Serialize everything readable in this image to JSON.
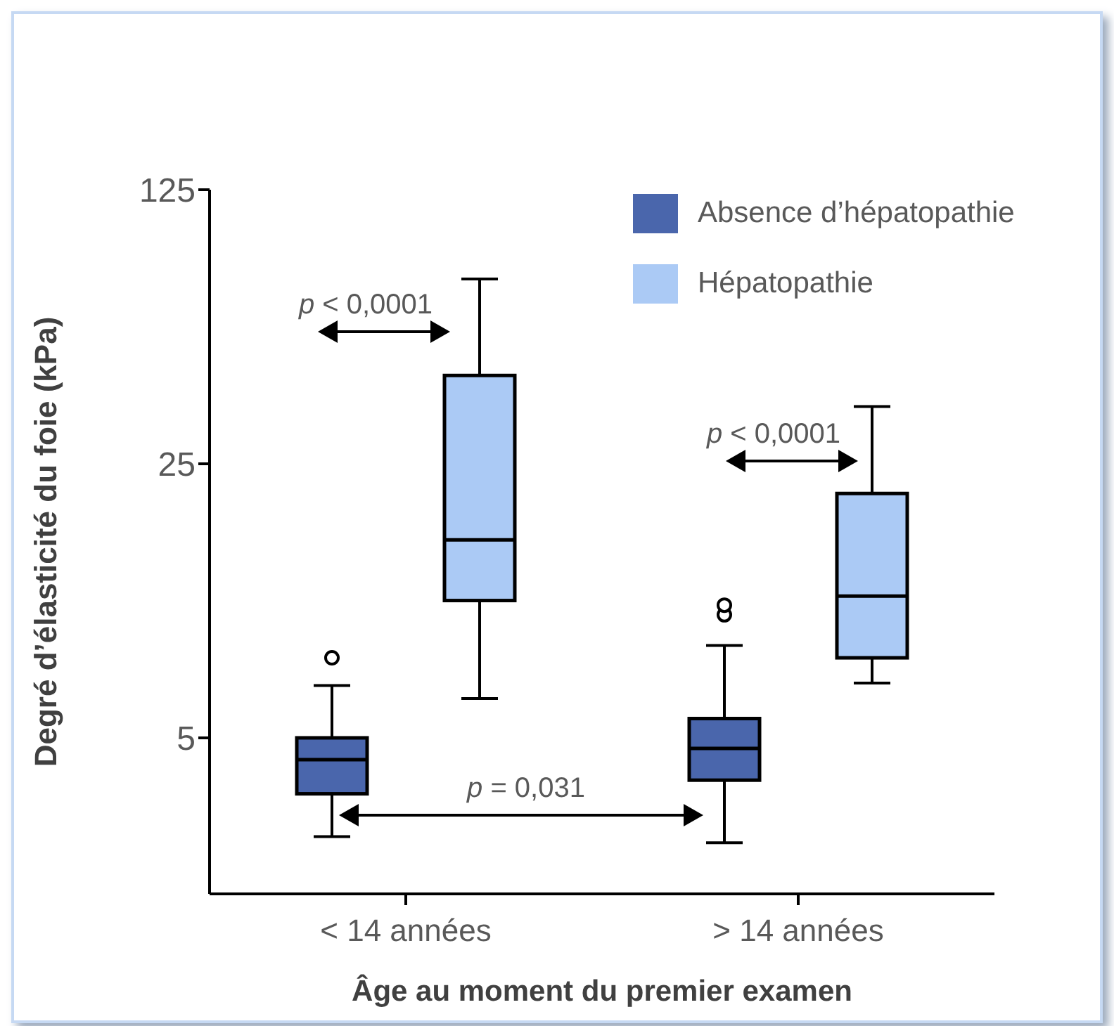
{
  "chart_data": {
    "type": "box",
    "xlabel": "Âge au moment du premier examen",
    "ylabel": "Degré d’élasticité du foie (kPa)",
    "categories": [
      "< 14 années",
      "> 14 années"
    ],
    "log": true,
    "ylim": [
      2,
      125
    ],
    "yticks": [
      5,
      25,
      125
    ],
    "legend": "top right",
    "series": [
      {
        "name": "Absence d’hépatopathie",
        "color": "#4a66ac",
        "boxes": [
          {
            "low": 2.8,
            "q1": 3.6,
            "median": 4.4,
            "q3": 5,
            "high": 6.8,
            "outliers": [
              8
            ]
          },
          {
            "low": 2.7,
            "q1": 3.9,
            "median": 4.7,
            "q3": 5.6,
            "high": 8.6,
            "outliers": [
              10.3,
              10.9
            ]
          }
        ]
      },
      {
        "name": "Hépatopathie",
        "color": "#abcaf5",
        "boxes": [
          {
            "low": 6.3,
            "q1": 11.2,
            "median": 16,
            "q3": 42,
            "high": 74
          },
          {
            "low": 6.9,
            "q1": 8,
            "median": 11.5,
            "q3": 21,
            "high": 35
          }
        ]
      }
    ],
    "annotations": [
      "p < 0,0001",
      "p < 0,0001",
      "p = 0,031"
    ]
  }
}
